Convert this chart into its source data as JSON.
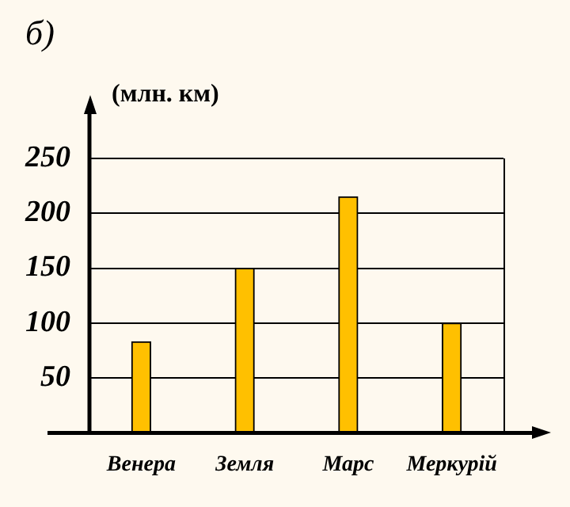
{
  "chart_data": {
    "type": "bar",
    "title": "б)",
    "ylabel": "(млн. км)",
    "categories": [
      "Венера",
      "Земля",
      "Марс",
      "Меркурій"
    ],
    "values": [
      83,
      150,
      215,
      100
    ],
    "color": "#ffc000",
    "ylim": [
      0,
      250
    ],
    "yticks": [
      50,
      100,
      150,
      200,
      250
    ],
    "grid": "y"
  }
}
